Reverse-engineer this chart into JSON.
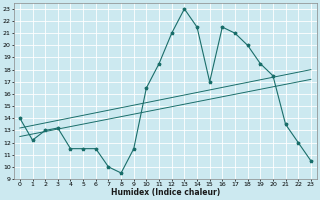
{
  "xlabel": "Humidex (Indice chaleur)",
  "bg_color": "#cce9f0",
  "grid_color": "#ffffff",
  "line_color": "#1a6e6a",
  "xlim": [
    -0.5,
    23.5
  ],
  "ylim": [
    9,
    23.5
  ],
  "xticks": [
    0,
    1,
    2,
    3,
    4,
    5,
    6,
    7,
    8,
    9,
    10,
    11,
    12,
    13,
    14,
    15,
    16,
    17,
    18,
    19,
    20,
    21,
    22,
    23
  ],
  "yticks": [
    9,
    10,
    11,
    12,
    13,
    14,
    15,
    16,
    17,
    18,
    19,
    20,
    21,
    22,
    23
  ],
  "line1_x": [
    0,
    1,
    2,
    3,
    4,
    5,
    6,
    7,
    8,
    9,
    10,
    11,
    12,
    13,
    14,
    15,
    16,
    17,
    18,
    19,
    20,
    21,
    22,
    23
  ],
  "line1_y": [
    14.0,
    12.2,
    13.0,
    13.2,
    11.5,
    11.5,
    11.5,
    10.0,
    9.5,
    11.5,
    16.5,
    18.5,
    21.0,
    23.0,
    21.5,
    17.0,
    21.5,
    21.0,
    20.0,
    18.5,
    17.5,
    13.5,
    12.0,
    10.5
  ],
  "line2_x": [
    0,
    23
  ],
  "line2_y": [
    13.2,
    18.0
  ],
  "line3_x": [
    0,
    23
  ],
  "line3_y": [
    12.5,
    17.2
  ]
}
